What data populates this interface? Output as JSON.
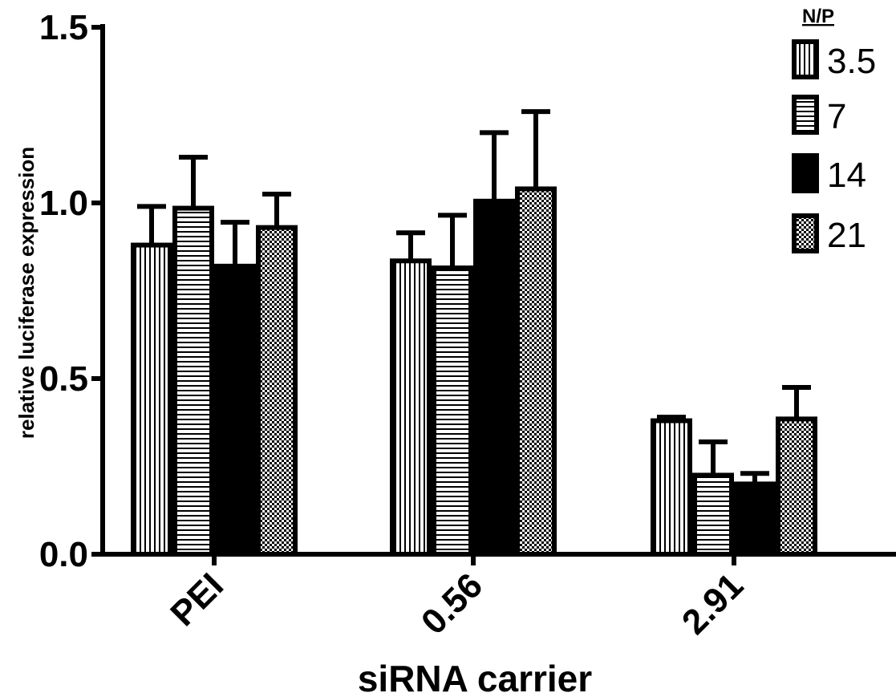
{
  "chart_data": {
    "type": "bar",
    "xlabel": "siRNA carrier",
    "ylabel": "relative luciferase expression",
    "ylim": [
      0,
      1.5
    ],
    "yticks": [
      "0.0",
      "0.5",
      "1.0",
      "1.5"
    ],
    "categories": [
      "PEI",
      "0.56",
      "2.91"
    ],
    "legend_title": "N/P",
    "legend_position": "top-right",
    "grid": false,
    "series": [
      {
        "name": "3.5",
        "pattern": "vertical-lines",
        "color": "#000000",
        "values": [
          0.88,
          0.835,
          0.38
        ],
        "errors": [
          0.11,
          0.08,
          0.01
        ]
      },
      {
        "name": "7",
        "pattern": "horizontal-lines",
        "color": "#000000",
        "values": [
          0.985,
          0.815,
          0.225
        ],
        "errors": [
          0.145,
          0.15,
          0.095
        ]
      },
      {
        "name": "14",
        "pattern": "solid",
        "color": "#000000",
        "values": [
          0.82,
          1.005,
          0.2
        ],
        "errors": [
          0.125,
          0.195,
          0.03
        ]
      },
      {
        "name": "21",
        "pattern": "checkered",
        "color": "#000000",
        "values": [
          0.93,
          1.04,
          0.385
        ],
        "errors": [
          0.095,
          0.22,
          0.09
        ]
      }
    ]
  }
}
